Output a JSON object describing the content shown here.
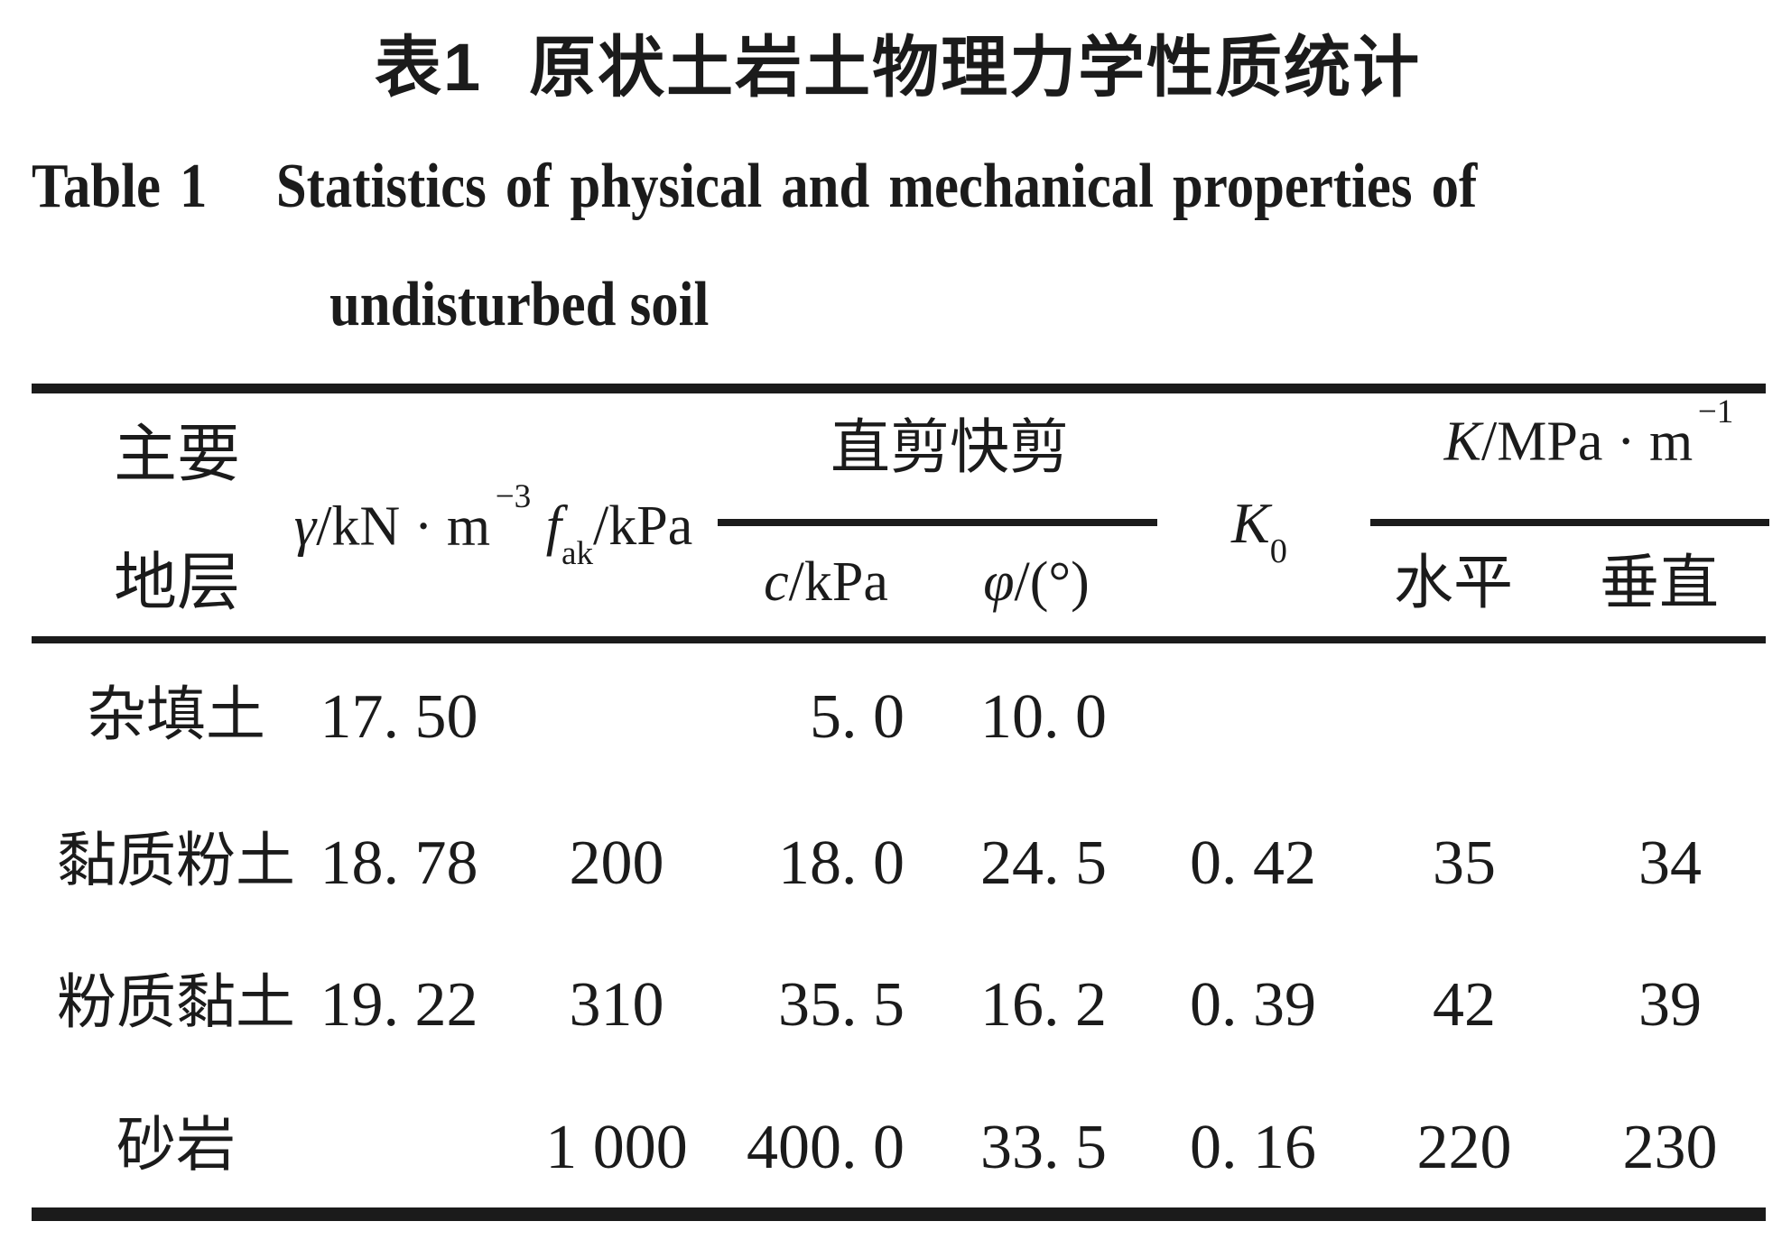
{
  "title": {
    "zh_label": "表1",
    "zh_text": "原状土岩土物理力学性质统计",
    "en_label": "Table 1",
    "en_line1": "Statistics of physical and mechanical properties of",
    "en_line2": "undisturbed soil"
  },
  "table": {
    "columns": {
      "stratum": {
        "line1": "主要",
        "line2": "地层"
      },
      "gamma": {
        "var": "γ",
        "unit": "/kN · m",
        "exp": "−3"
      },
      "fak": {
        "var": "f",
        "sub": "ak",
        "unit": "/kPa"
      },
      "shear": {
        "group": "直剪快剪",
        "c_var": "c",
        "c_unit": "/kPa",
        "phi_var": "φ",
        "phi_unit": "/(°)"
      },
      "k0": {
        "var": "K",
        "sub": "0"
      },
      "k": {
        "group_var": "K",
        "group_unit": "/MPa · m",
        "exp": "−1",
        "horizontal": "水平",
        "vertical": "垂直"
      }
    },
    "rows": [
      {
        "stratum": "杂填土",
        "gamma": "17. 50",
        "fak": "",
        "c": "5. 0",
        "phi": "10. 0",
        "k0": "",
        "kh": "",
        "kv": ""
      },
      {
        "stratum": "黏质粉土",
        "gamma": "18. 78",
        "fak": "200",
        "c": "18. 0",
        "phi": "24. 5",
        "k0": "0. 42",
        "kh": "35",
        "kv": "34"
      },
      {
        "stratum": "粉质黏土",
        "gamma": "19. 22",
        "fak": "310",
        "c": "35. 5",
        "phi": "16. 2",
        "k0": "0. 39",
        "kh": "42",
        "kv": "39"
      },
      {
        "stratum": "砂岩",
        "gamma": "",
        "fak": "1 000",
        "c": "400. 0",
        "phi": "33. 5",
        "k0": "0. 16",
        "kh": "220",
        "kv": "230"
      }
    ]
  },
  "colors": {
    "text": "#1b1b1b",
    "background": "#ffffff",
    "rule": "#1b1b1b"
  }
}
